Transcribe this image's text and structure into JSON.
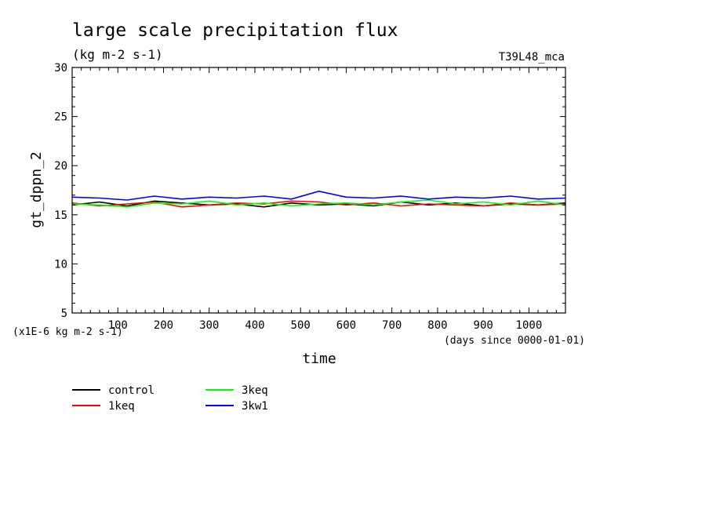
{
  "chart_data": {
    "type": "line",
    "title": "large scale precipitation flux",
    "units": "(kg m-2 s-1)",
    "run_label": "T39L48_mca",
    "ylabel": "gt_dppn_2",
    "xlabel": "time",
    "x_units": "(days since 0000-01-01)",
    "y_scale_note": "(x1E-6 kg m-2 s-1)",
    "xlim": [
      0,
      1080
    ],
    "ylim": [
      5,
      30
    ],
    "x_ticks": [
      100,
      200,
      300,
      400,
      500,
      600,
      700,
      800,
      900,
      1000
    ],
    "y_ticks": [
      5,
      10,
      15,
      20,
      25,
      30
    ],
    "grid": false,
    "legend_position": "bottom-left",
    "series": [
      {
        "name": "control",
        "color": "#000000",
        "x": [
          0,
          60,
          120,
          180,
          240,
          300,
          360,
          420,
          480,
          540,
          600,
          660,
          720,
          780,
          840,
          900,
          960,
          1020,
          1080
        ],
        "values": [
          16.0,
          16.3,
          15.9,
          16.4,
          16.2,
          16.0,
          16.1,
          15.8,
          16.2,
          16.0,
          16.1,
          15.9,
          16.3,
          16.0,
          16.2,
          15.9,
          16.1,
          16.0,
          16.2
        ]
      },
      {
        "name": "1keq",
        "color": "#ff0000",
        "x": [
          0,
          60,
          120,
          180,
          240,
          300,
          360,
          420,
          480,
          540,
          600,
          660,
          720,
          780,
          840,
          900,
          960,
          1020,
          1080
        ],
        "values": [
          16.2,
          15.9,
          16.1,
          16.3,
          15.8,
          16.0,
          16.2,
          16.1,
          16.4,
          16.3,
          16.0,
          16.2,
          15.9,
          16.1,
          16.0,
          15.9,
          16.2,
          16.0,
          16.1
        ]
      },
      {
        "name": "3keq",
        "color": "#00ff00",
        "x": [
          0,
          60,
          120,
          180,
          240,
          300,
          360,
          420,
          480,
          540,
          600,
          660,
          720,
          780,
          840,
          900,
          960,
          1020,
          1080
        ],
        "values": [
          16.1,
          16.0,
          15.8,
          16.2,
          16.1,
          16.4,
          16.0,
          16.2,
          15.9,
          16.1,
          16.2,
          16.0,
          16.3,
          16.5,
          16.1,
          16.3,
          16.0,
          16.4,
          16.0
        ]
      },
      {
        "name": "3kw1",
        "color": "#0000ff",
        "x": [
          0,
          60,
          120,
          180,
          240,
          300,
          360,
          420,
          480,
          540,
          600,
          660,
          720,
          780,
          840,
          900,
          960,
          1020,
          1080
        ],
        "values": [
          16.8,
          16.7,
          16.5,
          16.9,
          16.6,
          16.8,
          16.7,
          16.9,
          16.6,
          17.4,
          16.8,
          16.7,
          16.9,
          16.6,
          16.8,
          16.7,
          16.9,
          16.6,
          16.7
        ]
      }
    ]
  }
}
